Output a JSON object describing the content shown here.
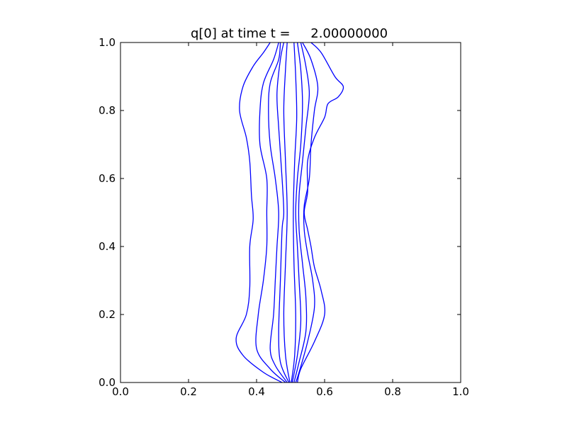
{
  "chart_data": {
    "type": "contour",
    "title": "q[0] at time t =     2.00000000",
    "xlabel": "",
    "ylabel": "",
    "xlim": [
      0.0,
      1.0
    ],
    "ylim": [
      0.0,
      1.0
    ],
    "x_ticks": [
      "0.0",
      "0.2",
      "0.4",
      "0.6",
      "0.8",
      "1.0"
    ],
    "y_ticks": [
      "0.0",
      "0.2",
      "0.4",
      "0.6",
      "0.8",
      "1.0"
    ],
    "grid": false,
    "legend": "none",
    "line_color": "#0000ff",
    "series": [
      {
        "values": [
          [
            0.475,
            0.0
          ],
          [
            0.42,
            0.03
          ],
          [
            0.36,
            0.08
          ],
          [
            0.34,
            0.13
          ],
          [
            0.37,
            0.2
          ],
          [
            0.38,
            0.28
          ],
          [
            0.38,
            0.4
          ],
          [
            0.39,
            0.48
          ],
          [
            0.385,
            0.55
          ],
          [
            0.38,
            0.65
          ],
          [
            0.37,
            0.72
          ],
          [
            0.35,
            0.8
          ],
          [
            0.36,
            0.87
          ],
          [
            0.39,
            0.93
          ],
          [
            0.42,
            0.97
          ],
          [
            0.44,
            1.0
          ]
        ]
      },
      {
        "values": [
          [
            0.56,
            1.0
          ],
          [
            0.59,
            0.97
          ],
          [
            0.63,
            0.9
          ],
          [
            0.655,
            0.87
          ],
          [
            0.64,
            0.84
          ],
          [
            0.61,
            0.82
          ],
          [
            0.6,
            0.78
          ],
          [
            0.57,
            0.72
          ],
          [
            0.55,
            0.65
          ],
          [
            0.55,
            0.56
          ],
          [
            0.54,
            0.5
          ],
          [
            0.55,
            0.45
          ],
          [
            0.56,
            0.4
          ],
          [
            0.57,
            0.34
          ],
          [
            0.59,
            0.27
          ],
          [
            0.6,
            0.2
          ],
          [
            0.57,
            0.12
          ],
          [
            0.53,
            0.04
          ],
          [
            0.52,
            0.0
          ]
        ]
      },
      {
        "values": [
          [
            0.485,
            0.0
          ],
          [
            0.44,
            0.04
          ],
          [
            0.4,
            0.1
          ],
          [
            0.405,
            0.2
          ],
          [
            0.42,
            0.3
          ],
          [
            0.43,
            0.4
          ],
          [
            0.43,
            0.5
          ],
          [
            0.43,
            0.6
          ],
          [
            0.41,
            0.7
          ],
          [
            0.41,
            0.8
          ],
          [
            0.42,
            0.88
          ],
          [
            0.45,
            0.95
          ],
          [
            0.465,
            1.0
          ]
        ]
      },
      {
        "values": [
          [
            0.535,
            1.0
          ],
          [
            0.56,
            0.95
          ],
          [
            0.58,
            0.87
          ],
          [
            0.57,
            0.8
          ],
          [
            0.56,
            0.7
          ],
          [
            0.555,
            0.6
          ],
          [
            0.54,
            0.52
          ],
          [
            0.54,
            0.45
          ],
          [
            0.55,
            0.38
          ],
          [
            0.565,
            0.3
          ],
          [
            0.57,
            0.22
          ],
          [
            0.55,
            0.12
          ],
          [
            0.525,
            0.03
          ],
          [
            0.515,
            0.0
          ]
        ]
      },
      {
        "values": [
          [
            0.49,
            0.0
          ],
          [
            0.455,
            0.05
          ],
          [
            0.44,
            0.1
          ],
          [
            0.45,
            0.2
          ],
          [
            0.455,
            0.3
          ],
          [
            0.46,
            0.4
          ],
          [
            0.465,
            0.5
          ],
          [
            0.455,
            0.6
          ],
          [
            0.44,
            0.7
          ],
          [
            0.435,
            0.8
          ],
          [
            0.44,
            0.88
          ],
          [
            0.465,
            0.95
          ],
          [
            0.47,
            1.0
          ]
        ]
      },
      {
        "values": [
          [
            0.53,
            1.0
          ],
          [
            0.545,
            0.93
          ],
          [
            0.555,
            0.85
          ],
          [
            0.545,
            0.75
          ],
          [
            0.535,
            0.65
          ],
          [
            0.525,
            0.55
          ],
          [
            0.525,
            0.45
          ],
          [
            0.535,
            0.35
          ],
          [
            0.545,
            0.25
          ],
          [
            0.545,
            0.15
          ],
          [
            0.525,
            0.06
          ],
          [
            0.51,
            0.0
          ]
        ]
      },
      {
        "values": [
          [
            0.495,
            0.0
          ],
          [
            0.47,
            0.06
          ],
          [
            0.465,
            0.15
          ],
          [
            0.47,
            0.3
          ],
          [
            0.475,
            0.45
          ],
          [
            0.48,
            0.5
          ],
          [
            0.475,
            0.6
          ],
          [
            0.465,
            0.75
          ],
          [
            0.46,
            0.85
          ],
          [
            0.47,
            0.95
          ],
          [
            0.48,
            1.0
          ]
        ]
      },
      {
        "values": [
          [
            0.52,
            1.0
          ],
          [
            0.53,
            0.92
          ],
          [
            0.535,
            0.82
          ],
          [
            0.53,
            0.7
          ],
          [
            0.52,
            0.6
          ],
          [
            0.515,
            0.5
          ],
          [
            0.52,
            0.4
          ],
          [
            0.525,
            0.3
          ],
          [
            0.53,
            0.18
          ],
          [
            0.52,
            0.08
          ],
          [
            0.505,
            0.0
          ]
        ]
      },
      {
        "values": [
          [
            0.498,
            0.0
          ],
          [
            0.485,
            0.08
          ],
          [
            0.48,
            0.2
          ],
          [
            0.485,
            0.35
          ],
          [
            0.49,
            0.5
          ],
          [
            0.485,
            0.65
          ],
          [
            0.48,
            0.8
          ],
          [
            0.485,
            0.92
          ],
          [
            0.49,
            1.0
          ]
        ]
      },
      {
        "values": [
          [
            0.51,
            1.0
          ],
          [
            0.515,
            0.9
          ],
          [
            0.518,
            0.78
          ],
          [
            0.512,
            0.65
          ],
          [
            0.508,
            0.5
          ],
          [
            0.51,
            0.35
          ],
          [
            0.515,
            0.2
          ],
          [
            0.512,
            0.08
          ],
          [
            0.502,
            0.0
          ]
        ]
      }
    ]
  }
}
